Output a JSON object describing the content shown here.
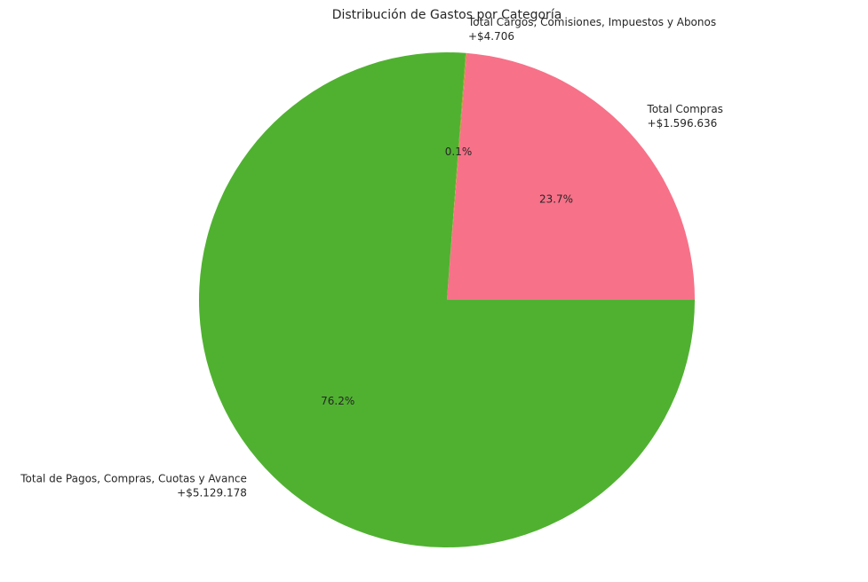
{
  "chart_data": {
    "type": "pie",
    "title": "Distribución de Gastos por Categoría",
    "start_angle_deg": 0,
    "direction": "counterclockwise",
    "slices": [
      {
        "label": "Total  Compras",
        "amount_label": "+$1.596.636",
        "value": 1596636,
        "percent_label": "23.7%",
        "color": "#f77189"
      },
      {
        "label": "Total Cargos, Comisiones, Impuestos y Abonos",
        "amount_label": "+$4.706",
        "value": 4706,
        "percent_label": "0.1%",
        "color": "#bb9832"
      },
      {
        "label": "Total de Pagos, Compras, Cuotas y Avance",
        "amount_label": "+$5.129.178",
        "value": 5129178,
        "percent_label": "76.2%",
        "color": "#50b131"
      }
    ]
  }
}
